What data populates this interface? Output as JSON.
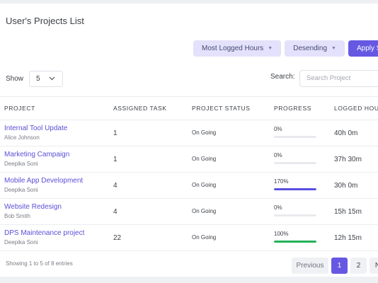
{
  "header": {
    "title": "User's Projects List"
  },
  "toolbar": {
    "sort_by": "Most Logged Hours",
    "order": "Desending",
    "apply_label": "Apply So"
  },
  "controls": {
    "show_label": "Show",
    "show_value": "5",
    "search_label": "Search:",
    "search_placeholder": "Search Project"
  },
  "table": {
    "columns": [
      "PROJECT",
      "ASSIGNED TASK",
      "PROJECT STATUS",
      "PROGRESS",
      "LOGGED HOUR"
    ],
    "rows": [
      {
        "name": "Internal Tool Update",
        "owner": "Alice Johnson",
        "tasks": "1",
        "status": "On Going",
        "progress_label": "0%",
        "progress": 0,
        "hours": "40h 0m"
      },
      {
        "name": "Marketing Campaign",
        "owner": "Deepika Soni",
        "tasks": "1",
        "status": "On Going",
        "progress_label": "0%",
        "progress": 0,
        "hours": "37h 30m"
      },
      {
        "name": "Mobile App Development",
        "owner": "Deepika Soni",
        "tasks": "4",
        "status": "On Going",
        "progress_label": "170%",
        "progress": 1.0,
        "hours": "30h 0m"
      },
      {
        "name": "Website Redesign",
        "owner": "Bob Smith",
        "tasks": "4",
        "status": "On Going",
        "progress_label": "0%",
        "progress": 0,
        "hours": "15h 15m"
      },
      {
        "name": "DPS Maintenance project",
        "owner": "Deepika Soni",
        "tasks": "22",
        "status": "On Going",
        "progress_label": "100%",
        "progress": 1.0,
        "hours": "12h 15m"
      }
    ]
  },
  "progress_colors": [
    "#e9eaee",
    "#e9eaee",
    "#5b4fe0",
    "#e9eaee",
    "#23b258"
  ],
  "footer": {
    "summary": "Showing 1 to 5 of 8 entries",
    "previous_label": "Previous",
    "pages": [
      "1",
      "2",
      "N"
    ]
  },
  "colors": {
    "accent": "#6658e3",
    "success": "#23b258"
  }
}
